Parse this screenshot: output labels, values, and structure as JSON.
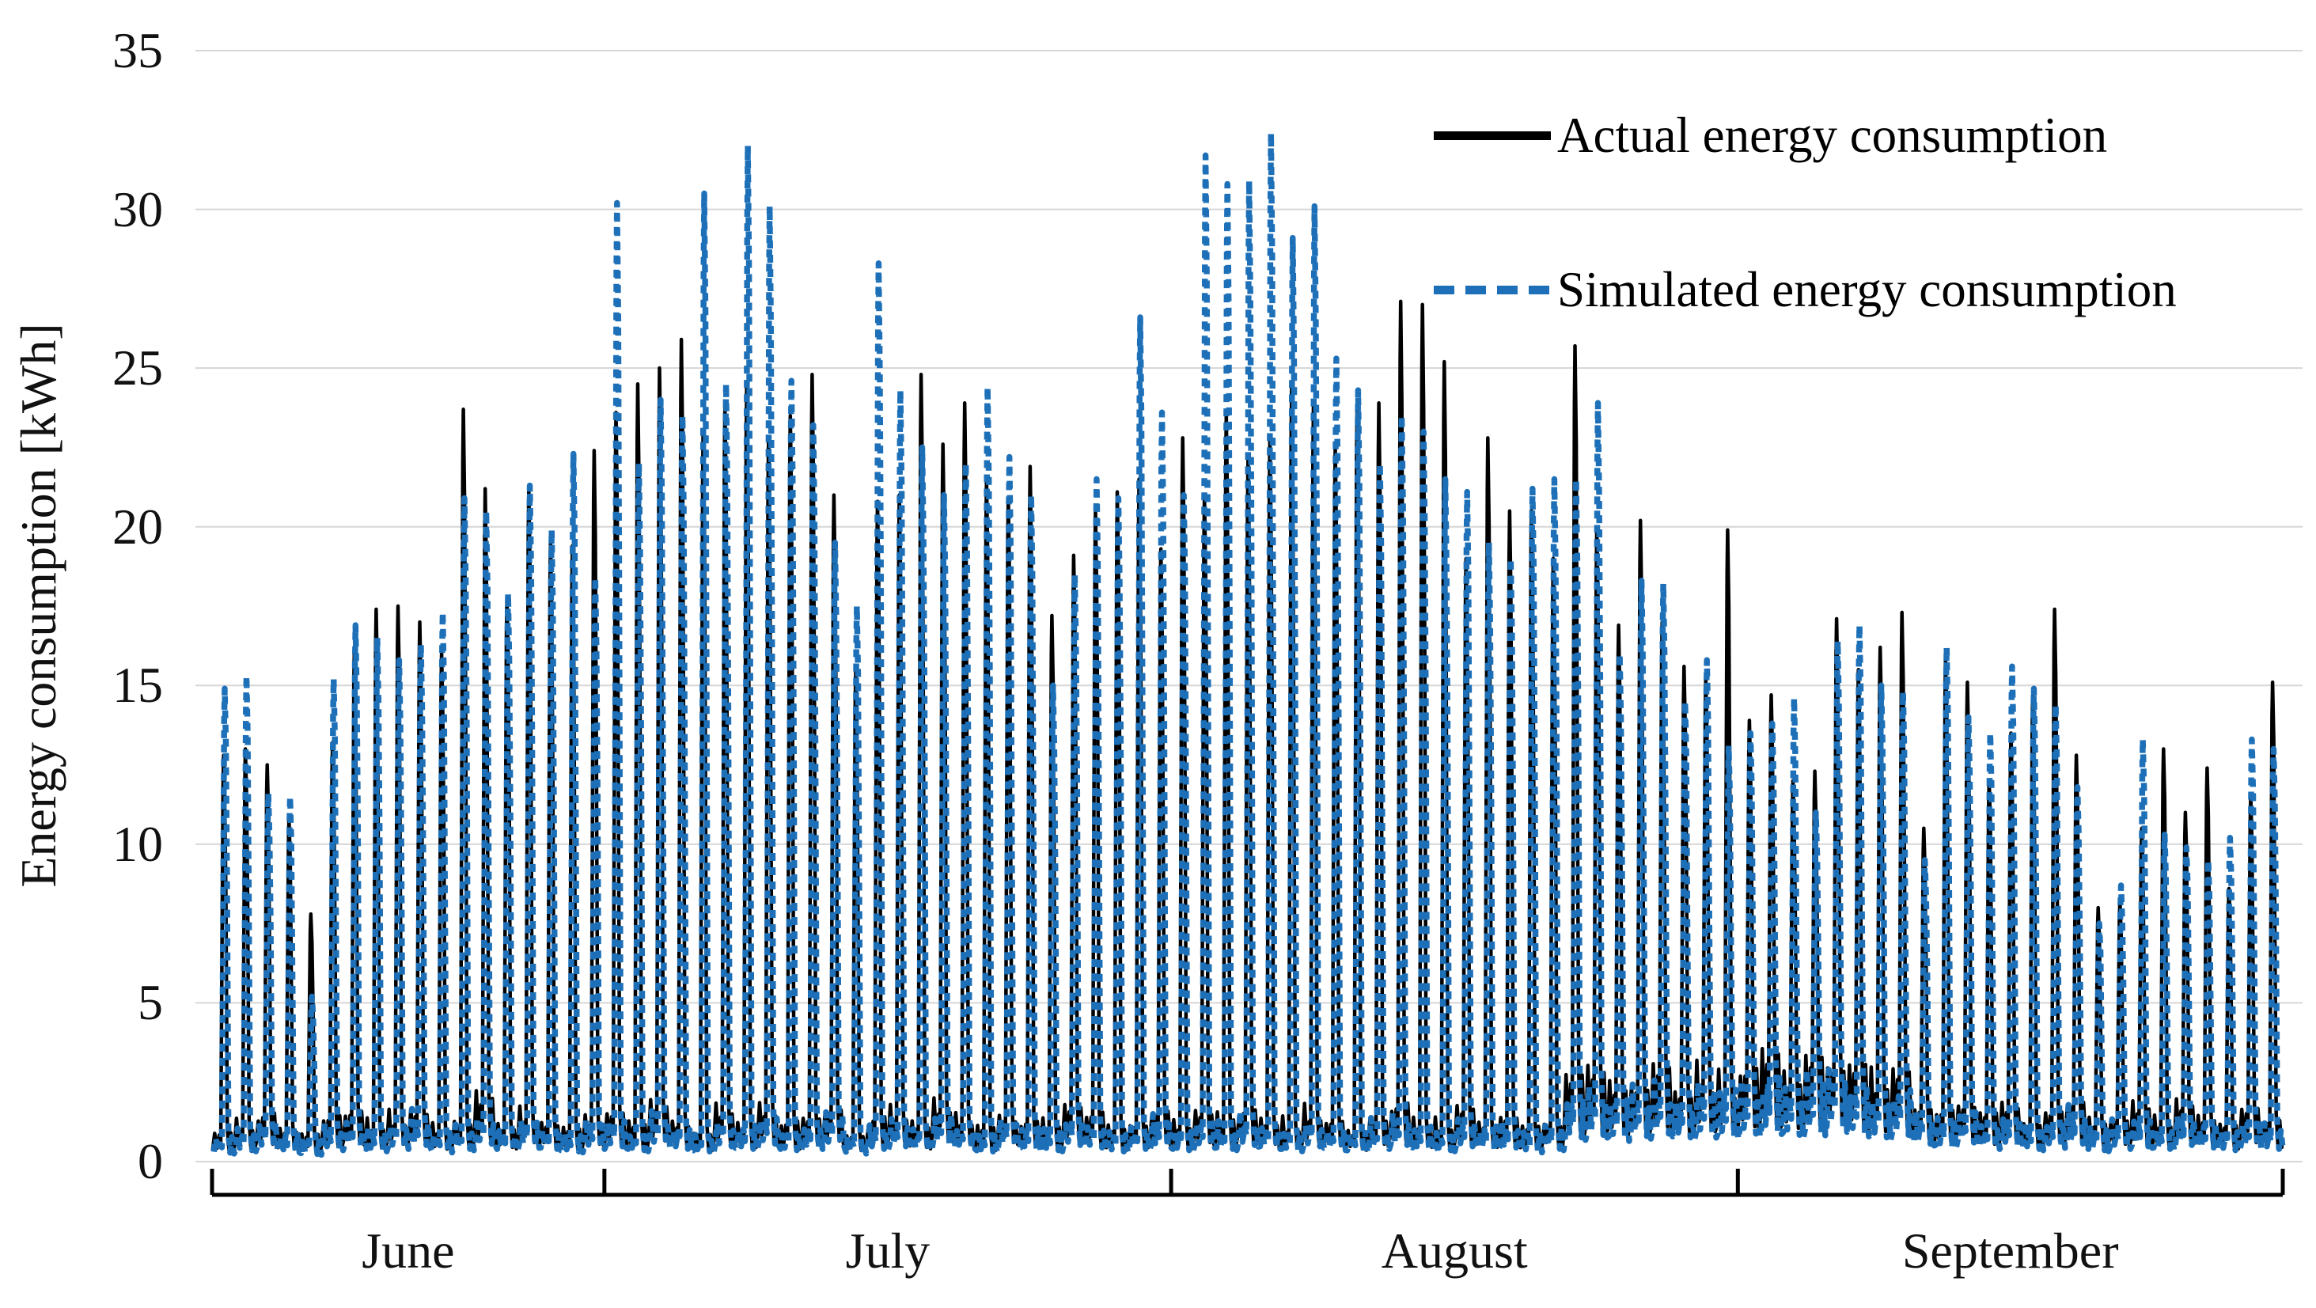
{
  "figure": {
    "background": "#ffffff",
    "gridline_color": "#d6d6d6",
    "axis_color": "#000000"
  },
  "chart_data": {
    "type": "line",
    "title": "",
    "xlabel": "",
    "ylabel": "Energy consumption [kWh]",
    "ylim": [
      0,
      35
    ],
    "yticks": [
      35,
      30,
      25,
      20,
      15,
      10,
      5,
      0
    ],
    "grid": "horizontal",
    "legend_position": "top-right",
    "x_unit": "day",
    "months": [
      {
        "label": "June",
        "days": 18
      },
      {
        "label": "July",
        "days": 26
      },
      {
        "label": "August",
        "days": 26
      },
      {
        "label": "September",
        "days": 25
      }
    ],
    "series": [
      {
        "name": "Actual energy consumption",
        "color": "#000000",
        "style": "solid",
        "daily_peaks": [
          12.8,
          13.0,
          12.5,
          10.8,
          7.8,
          13.2,
          16.2,
          17.4,
          17.5,
          17.0,
          16.0,
          23.7,
          21.2,
          17.8,
          21.2,
          19.6,
          19.4,
          22.4,
          23.6,
          24.5,
          25.0,
          25.9,
          23.0,
          23.8,
          24.5,
          22.8,
          23.5,
          24.8,
          21.0,
          15.5,
          20.8,
          21.0,
          24.8,
          22.6,
          23.9,
          21.5,
          20.9,
          21.9,
          17.2,
          19.1,
          20.5,
          21.1,
          21.5,
          19.3,
          22.8,
          21.0,
          23.5,
          22.1,
          22.7,
          24.4,
          23.9,
          22.5,
          23.8,
          23.9,
          27.1,
          27.0,
          25.2,
          19.0,
          22.8,
          20.5,
          20.5,
          19.0,
          25.7,
          20.0,
          16.9,
          20.2,
          17.0,
          15.6,
          15.2,
          19.9,
          13.9,
          14.7,
          12.0,
          12.3,
          17.1,
          15.5,
          16.2,
          17.3,
          10.5,
          15.8,
          15.1,
          12.0,
          13.5,
          14.7,
          17.4,
          12.8,
          8.0,
          8.2,
          10.5,
          13.0,
          11.0,
          12.4,
          8.6,
          11.5,
          15.1
        ]
      },
      {
        "name": "Simulated energy consumption",
        "color": "#1d70b8",
        "style": "dashed",
        "daily_peaks": [
          14.9,
          15.3,
          11.6,
          11.5,
          5.2,
          15.2,
          16.9,
          16.5,
          15.8,
          16.3,
          17.3,
          20.9,
          20.5,
          17.9,
          21.3,
          19.9,
          22.3,
          18.4,
          30.2,
          22.0,
          24.0,
          23.5,
          30.5,
          24.5,
          32.0,
          30.1,
          24.6,
          23.2,
          19.5,
          17.5,
          28.3,
          24.3,
          22.5,
          21.0,
          22.0,
          24.4,
          22.2,
          21.0,
          15.0,
          18.5,
          21.5,
          20.9,
          26.6,
          23.6,
          21.0,
          31.7,
          30.8,
          30.9,
          32.4,
          29.1,
          30.1,
          25.3,
          24.3,
          22.0,
          23.5,
          23.0,
          21.5,
          21.1,
          19.5,
          19.0,
          21.2,
          21.5,
          21.5,
          23.9,
          16.0,
          18.3,
          18.2,
          14.5,
          15.8,
          13.1,
          13.5,
          13.8,
          14.6,
          11.0,
          16.4,
          16.9,
          15.0,
          14.8,
          9.5,
          16.2,
          14.0,
          13.5,
          15.6,
          14.9,
          14.4,
          11.8,
          7.5,
          8.7,
          13.3,
          10.3,
          9.9,
          9.5,
          10.2,
          13.3,
          13.0
        ]
      }
    ],
    "daily_baseline": [
      0.7,
      0.9,
      1.1,
      0.8,
      0.6,
      1.0,
      1.2,
      0.9,
      1.1,
      1.3,
      0.8,
      1.0,
      1.4,
      0.9,
      1.2,
      1.0,
      0.8,
      1.1,
      1.2,
      0.9,
      1.3,
      1.0,
      0.8,
      1.2,
      1.0,
      1.4,
      0.9,
      1.1,
      1.3,
      0.7,
      1.0,
      1.2,
      0.9,
      1.4,
      1.1,
      0.8,
      1.2,
      1.0,
      0.9,
      1.3,
      1.1,
      0.8,
      1.0,
      1.2,
      0.9,
      1.2,
      1.0,
      1.3,
      1.1,
      0.9,
      1.2,
      1.0,
      0.8,
      1.1,
      1.3,
      1.0,
      0.9,
      1.2,
      1.0,
      1.1,
      0.8,
      1.0,
      1.9,
      2.1,
      1.8,
      2.0,
      2.2,
      1.9,
      2.1,
      2.0,
      2.2,
      2.4,
      2.1,
      2.3,
      2.6,
      2.2,
      1.9,
      2.1,
      1.4,
      1.2,
      1.5,
      1.1,
      1.3,
      1.0,
      1.2,
      1.4,
      0.9,
      1.1,
      1.2,
      1.0,
      1.3,
      1.1,
      0.9,
      1.2,
      1.0
    ]
  }
}
